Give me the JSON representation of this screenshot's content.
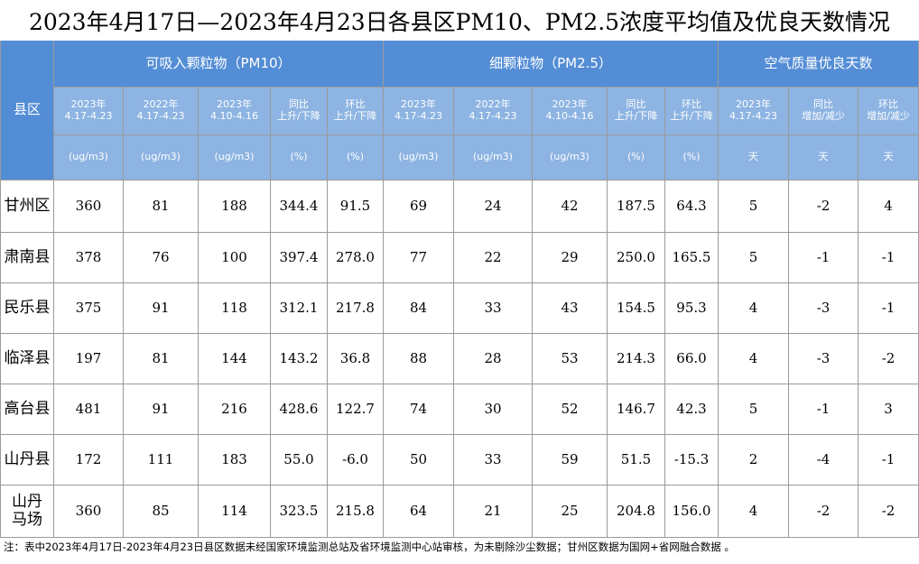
{
  "title": "2023年4月17日—2023年4月23日各县区PM10、PM2.5浓度平均值及优良天数情况",
  "table": {
    "county_header": "县区",
    "group_headers": [
      "可吸入颗粒物（PM10）",
      "细颗粒物（PM2.5）",
      "空气质量优良天数"
    ],
    "sub_headers": [
      [
        "2023年",
        "4.17-4.23"
      ],
      [
        "2022年",
        "4.17-4.23"
      ],
      [
        "2023年",
        "4.10-4.16"
      ],
      [
        "同比",
        "上升/下降"
      ],
      [
        "环比",
        "上升/下降"
      ],
      [
        "2023年",
        "4.17-4.23"
      ],
      [
        "2022年",
        "4.17-4.23"
      ],
      [
        "2023年",
        "4.10-4.16"
      ],
      [
        "同比",
        "上升/下降"
      ],
      [
        "环比",
        "上升/下降"
      ],
      [
        "2023年",
        "4.17-4.23"
      ],
      [
        "同比",
        "增加/减少"
      ],
      [
        "环比",
        "增加/减少"
      ]
    ],
    "units": [
      "(ug/m3)",
      "(ug/m3)",
      "(ug/m3)",
      "(%)",
      "(%)",
      "(ug/m3)",
      "(ug/m3)",
      "(ug/m3)",
      "(%)",
      "(%)",
      "天",
      "天",
      "天"
    ],
    "rows": [
      {
        "county": [
          "甘州区"
        ],
        "cells": [
          "360",
          "81",
          "188",
          "344.4",
          "91.5",
          "69",
          "24",
          "42",
          "187.5",
          "64.3",
          "5",
          "-2",
          "4"
        ]
      },
      {
        "county": [
          "肃南县"
        ],
        "cells": [
          "378",
          "76",
          "100",
          "397.4",
          "278.0",
          "77",
          "22",
          "29",
          "250.0",
          "165.5",
          "5",
          "-1",
          "-1"
        ]
      },
      {
        "county": [
          "民乐县"
        ],
        "cells": [
          "375",
          "91",
          "118",
          "312.1",
          "217.8",
          "84",
          "33",
          "43",
          "154.5",
          "95.3",
          "4",
          "-3",
          "-1"
        ]
      },
      {
        "county": [
          "临泽县"
        ],
        "cells": [
          "197",
          "81",
          "144",
          "143.2",
          "36.8",
          "88",
          "28",
          "53",
          "214.3",
          "66.0",
          "4",
          "-3",
          "-2"
        ]
      },
      {
        "county": [
          "高台县"
        ],
        "cells": [
          "481",
          "91",
          "216",
          "428.6",
          "122.7",
          "74",
          "30",
          "52",
          "146.7",
          "42.3",
          "5",
          "-1",
          "3"
        ]
      },
      {
        "county": [
          "山丹县"
        ],
        "cells": [
          "172",
          "111",
          "183",
          "55.0",
          "-6.0",
          "50",
          "33",
          "59",
          "51.5",
          "-15.3",
          "2",
          "-4",
          "-1"
        ]
      },
      {
        "county": [
          "山丹",
          "马场"
        ],
        "cells": [
          "360",
          "85",
          "114",
          "323.5",
          "215.8",
          "64",
          "21",
          "25",
          "204.8",
          "156.0",
          "4",
          "-2",
          "-2"
        ]
      }
    ]
  },
  "footnote": "注：表中2023年4月17日-2023年4月23日县区数据未经国家环境监测总站及省环境监测中心站审核，为未剔除沙尘数据；甘州区数据为国网+省网融合数据 。"
}
